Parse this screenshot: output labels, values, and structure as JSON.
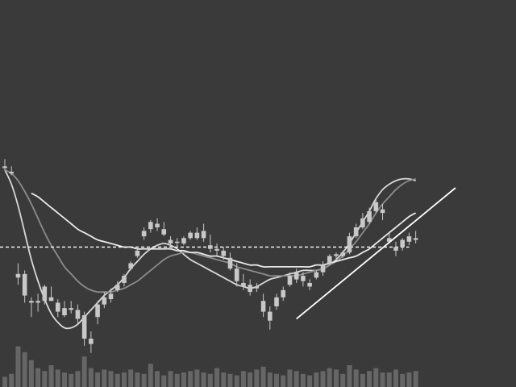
{
  "chart_data": {
    "type": "candlestick",
    "x_index_range": [
      0,
      63
    ],
    "ylim": [
      -35,
      120
    ],
    "volume_max": 100,
    "colors": {
      "background": "#3a3a3a",
      "candle": "#c8c8c8",
      "volume": "#666666",
      "ma_fast": "#d8d8d8",
      "ma_mid": "#8c8c8c",
      "ma_slow": "#e8e8e8",
      "level_line": "#ffffff",
      "trend_line": "#ffffff"
    },
    "candles": [
      {
        "i": 0,
        "o": 69,
        "h": 74,
        "l": 68,
        "c": 70
      },
      {
        "i": 1,
        "o": 67,
        "h": 70,
        "l": 65,
        "c": 66
      },
      {
        "i": 2,
        "o": 8,
        "h": 16,
        "l": 4,
        "c": 10
      },
      {
        "i": 3,
        "o": 10,
        "h": 12,
        "l": -6,
        "c": -2
      },
      {
        "i": 4,
        "o": -5,
        "h": -3,
        "l": -14,
        "c": -6
      },
      {
        "i": 5,
        "o": -5,
        "h": -1,
        "l": -11,
        "c": -6
      },
      {
        "i": 6,
        "o": -5,
        "h": 4,
        "l": -7,
        "c": 3
      },
      {
        "i": 7,
        "o": -3,
        "h": 3,
        "l": -5,
        "c": -5
      },
      {
        "i": 8,
        "o": -6,
        "h": -4,
        "l": -14,
        "c": -11
      },
      {
        "i": 9,
        "o": -9,
        "h": -5,
        "l": -14,
        "c": -13
      },
      {
        "i": 10,
        "o": -9,
        "h": -5,
        "l": -12,
        "c": -10
      },
      {
        "i": 11,
        "o": -10,
        "h": -7,
        "l": -18,
        "c": -15
      },
      {
        "i": 12,
        "o": -13,
        "h": -11,
        "l": -30,
        "c": -26
      },
      {
        "i": 13,
        "o": -26,
        "h": -22,
        "l": -34,
        "c": -29
      },
      {
        "i": 14,
        "o": -14,
        "h": -5,
        "l": -18,
        "c": -7
      },
      {
        "i": 15,
        "o": -7,
        "h": 0,
        "l": -9,
        "c": -3
      },
      {
        "i": 16,
        "o": -4,
        "h": 2,
        "l": -6,
        "c": -1
      },
      {
        "i": 17,
        "o": 4,
        "h": 6,
        "l": 0,
        "c": 1
      },
      {
        "i": 18,
        "o": 5,
        "h": 10,
        "l": 3,
        "c": 9
      },
      {
        "i": 19,
        "o": 13,
        "h": 17,
        "l": 12,
        "c": 16
      },
      {
        "i": 20,
        "o": 20,
        "h": 24,
        "l": 19,
        "c": 23
      },
      {
        "i": 21,
        "o": 31,
        "h": 36,
        "l": 29,
        "c": 34
      },
      {
        "i": 22,
        "o": 35,
        "h": 40,
        "l": 33,
        "c": 39
      },
      {
        "i": 23,
        "o": 38,
        "h": 41,
        "l": 34,
        "c": 36
      },
      {
        "i": 24,
        "o": 35,
        "h": 39,
        "l": 31,
        "c": 32
      },
      {
        "i": 25,
        "o": 29,
        "h": 31,
        "l": 25,
        "c": 27
      },
      {
        "i": 26,
        "o": 28,
        "h": 30,
        "l": 25,
        "c": 28
      },
      {
        "i": 27,
        "o": 27,
        "h": 31,
        "l": 26,
        "c": 30
      },
      {
        "i": 28,
        "o": 30,
        "h": 34,
        "l": 29,
        "c": 33
      },
      {
        "i": 29,
        "o": 33,
        "h": 36,
        "l": 29,
        "c": 30
      },
      {
        "i": 30,
        "o": 34,
        "h": 38,
        "l": 28,
        "c": 30
      },
      {
        "i": 31,
        "o": 26,
        "h": 32,
        "l": 22,
        "c": 24
      },
      {
        "i": 32,
        "o": 24,
        "h": 27,
        "l": 20,
        "c": 23
      },
      {
        "i": 33,
        "o": 23,
        "h": 25,
        "l": 18,
        "c": 20
      },
      {
        "i": 34,
        "o": 19,
        "h": 22,
        "l": 12,
        "c": 13
      },
      {
        "i": 35,
        "o": 13,
        "h": 16,
        "l": 3,
        "c": 6
      },
      {
        "i": 36,
        "o": 5,
        "h": 10,
        "l": 1,
        "c": 3
      },
      {
        "i": 37,
        "o": 4,
        "h": 7,
        "l": -2,
        "c": 0
      },
      {
        "i": 38,
        "o": 3,
        "h": 5,
        "l": 0,
        "c": 2
      },
      {
        "i": 39,
        "o": -5,
        "h": -1,
        "l": -14,
        "c": -11
      },
      {
        "i": 40,
        "o": -11,
        "h": -8,
        "l": -21,
        "c": -16
      },
      {
        "i": 41,
        "o": -8,
        "h": -1,
        "l": -10,
        "c": -3
      },
      {
        "i": 42,
        "o": -3,
        "h": 3,
        "l": -5,
        "c": 1
      },
      {
        "i": 43,
        "o": 4,
        "h": 11,
        "l": 3,
        "c": 9
      },
      {
        "i": 44,
        "o": 7,
        "h": 13,
        "l": 5,
        "c": 11
      },
      {
        "i": 45,
        "o": 9,
        "h": 11,
        "l": 3,
        "c": 6
      },
      {
        "i": 46,
        "o": 3,
        "h": 7,
        "l": 1,
        "c": 5
      },
      {
        "i": 47,
        "o": 8,
        "h": 12,
        "l": 7,
        "c": 11
      },
      {
        "i": 48,
        "o": 11,
        "h": 17,
        "l": 9,
        "c": 15
      },
      {
        "i": 49,
        "o": 16,
        "h": 21,
        "l": 15,
        "c": 20
      },
      {
        "i": 50,
        "o": 20,
        "h": 22,
        "l": 18,
        "c": 21
      },
      {
        "i": 51,
        "o": 20,
        "h": 23,
        "l": 19,
        "c": 22
      },
      {
        "i": 52,
        "o": 22,
        "h": 33,
        "l": 21,
        "c": 31
      },
      {
        "i": 53,
        "o": 31,
        "h": 38,
        "l": 30,
        "c": 36
      },
      {
        "i": 54,
        "o": 36,
        "h": 44,
        "l": 35,
        "c": 41
      },
      {
        "i": 55,
        "o": 39,
        "h": 47,
        "l": 38,
        "c": 45
      },
      {
        "i": 56,
        "o": 45,
        "h": 52,
        "l": 44,
        "c": 50
      },
      {
        "i": 57,
        "o": 44,
        "h": 49,
        "l": 40,
        "c": 46
      },
      {
        "i": 58,
        "o": 30,
        "h": 33,
        "l": 27,
        "c": 28
      },
      {
        "i": 59,
        "o": 23,
        "h": 28,
        "l": 20,
        "c": 25
      },
      {
        "i": 60,
        "o": 25,
        "h": 30,
        "l": 23,
        "c": 29
      },
      {
        "i": 61,
        "o": 28,
        "h": 33,
        "l": 26,
        "c": 31
      },
      {
        "i": 62,
        "o": 29,
        "h": 34,
        "l": 27,
        "c": 30
      }
    ],
    "volume": [
      14,
      18,
      56,
      48,
      37,
      26,
      22,
      30,
      24,
      20,
      18,
      22,
      42,
      26,
      20,
      24,
      22,
      18,
      20,
      24,
      20,
      18,
      32,
      22,
      16,
      22,
      18,
      20,
      22,
      24,
      20,
      18,
      26,
      20,
      18,
      16,
      22,
      20,
      24,
      28,
      20,
      18,
      16,
      24,
      22,
      18,
      16,
      20,
      22,
      26,
      24,
      18,
      30,
      24,
      18,
      22,
      26,
      20,
      20,
      24,
      18,
      20,
      22
    ],
    "moving_averages": [
      {
        "values": [
          68,
          60,
          48,
          33,
          18,
          6,
          -4,
          -12,
          -17,
          -20,
          -20,
          -18,
          -14,
          -10,
          -6,
          -2,
          1,
          4,
          8,
          13,
          17,
          21,
          24,
          26,
          27,
          26,
          24,
          21,
          18,
          16,
          14,
          12,
          10,
          8,
          6,
          4,
          3,
          2,
          3,
          5,
          7,
          8,
          9,
          10,
          11,
          12,
          12,
          12,
          13,
          15,
          18,
          22,
          27,
          33,
          39,
          45,
          52,
          57,
          60,
          62,
          63,
          63,
          62
        ]
      },
      {
        "values": [
          68,
          66,
          62,
          56,
          49,
          41,
          33,
          26,
          20,
          14,
          10,
          6,
          3,
          1,
          0,
          0,
          0,
          1,
          2,
          4,
          6,
          9,
          12,
          15,
          18,
          20,
          21,
          22,
          22,
          21,
          20,
          19,
          18,
          17,
          16,
          14,
          13,
          12,
          11,
          10,
          9,
          9,
          9,
          9,
          9,
          10,
          11,
          12,
          13,
          15,
          17,
          20,
          24,
          28,
          33,
          38,
          44,
          49,
          53,
          57,
          60,
          62,
          63
        ]
      },
      {
        "values": [
          null,
          null,
          null,
          null,
          55,
          53,
          50,
          47,
          44,
          41,
          38,
          35,
          33,
          31,
          29,
          28,
          27,
          26,
          25,
          25,
          24,
          24,
          24,
          24,
          24,
          24,
          23,
          23,
          22,
          22,
          21,
          20,
          20,
          19,
          18,
          17,
          16,
          15,
          15,
          14,
          14,
          14,
          14,
          14,
          14,
          14,
          14,
          15,
          15,
          16,
          17,
          18,
          19,
          20,
          22,
          24,
          27,
          30,
          33,
          36,
          39,
          42,
          44
        ]
      }
    ],
    "level_line": {
      "y": 25,
      "from_index": 0,
      "to_index": 61
    },
    "trend_line": {
      "from": {
        "i": 44,
        "y": -15
      },
      "to": {
        "i": 68,
        "y": 58
      }
    }
  }
}
